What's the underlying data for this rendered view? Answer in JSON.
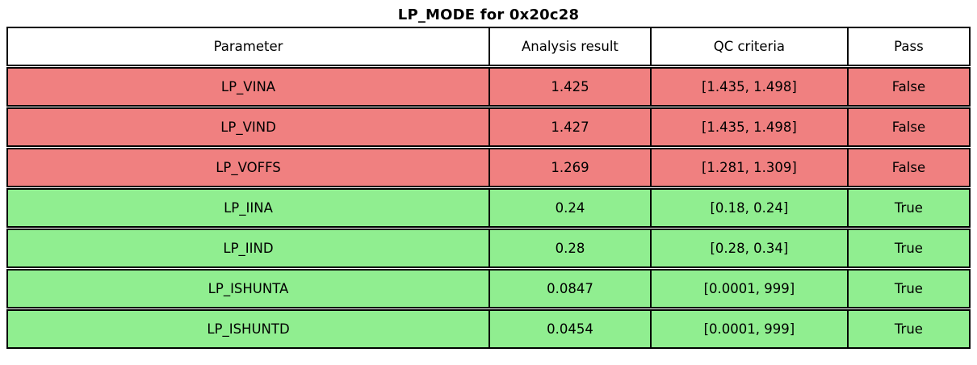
{
  "title": "LP_MODE for 0x20c28",
  "colors": {
    "fail_row": "#f08080",
    "pass_row": "#90ee90",
    "header_bg": "#ffffff",
    "border": "#000000",
    "text": "#000000"
  },
  "chart_data": {
    "type": "table",
    "title": "LP_MODE for 0x20c28",
    "columns": [
      "Parameter",
      "Analysis result",
      "QC criteria",
      "Pass"
    ],
    "rows": [
      {
        "parameter": "LP_VINA",
        "analysis_result": "1.425",
        "qc_criteria": "[1.435, 1.498]",
        "pass": "False",
        "status": "fail"
      },
      {
        "parameter": "LP_VIND",
        "analysis_result": "1.427",
        "qc_criteria": "[1.435, 1.498]",
        "pass": "False",
        "status": "fail"
      },
      {
        "parameter": "LP_VOFFS",
        "analysis_result": "1.269",
        "qc_criteria": "[1.281, 1.309]",
        "pass": "False",
        "status": "fail"
      },
      {
        "parameter": "LP_IINA",
        "analysis_result": "0.24",
        "qc_criteria": "[0.18, 0.24]",
        "pass": "True",
        "status": "pass"
      },
      {
        "parameter": "LP_IIND",
        "analysis_result": "0.28",
        "qc_criteria": "[0.28, 0.34]",
        "pass": "True",
        "status": "pass"
      },
      {
        "parameter": "LP_ISHUNTA",
        "analysis_result": "0.0847",
        "qc_criteria": "[0.0001, 999]",
        "pass": "True",
        "status": "pass"
      },
      {
        "parameter": "LP_ISHUNTD",
        "analysis_result": "0.0454",
        "qc_criteria": "[0.0001, 999]",
        "pass": "True",
        "status": "pass"
      }
    ],
    "layout": {
      "title_position": "top-center",
      "grid": true,
      "fail_rows_color": "#f08080",
      "pass_rows_color": "#90ee90"
    }
  }
}
